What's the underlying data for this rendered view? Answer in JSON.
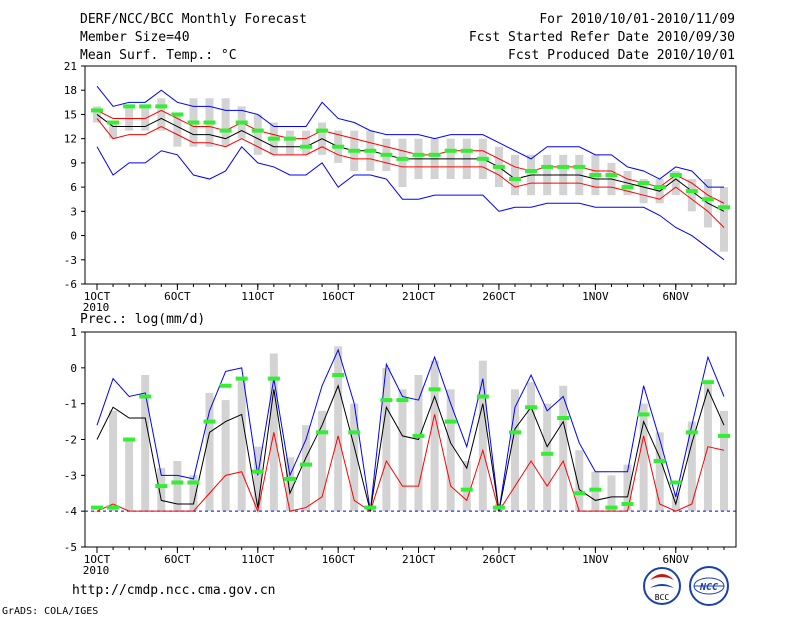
{
  "header": {
    "title": "DERF/NCC/BCC Monthly Forecast",
    "member_size": "Member Size=40",
    "variable": "Mean Surf. Temp.: °C",
    "period": "For 2010/10/01-2010/11/09",
    "fcst_started": "Fcst Started Refer Date 2010/09/30",
    "fcst_produced": "Fcst Produced Date 2010/10/01"
  },
  "footer": {
    "url": "http://cmdp.ncc.cma.gov.cn",
    "grads": "GrADS: COLA/IGES",
    "logo_bcc": "BCC",
    "logo_ncc": "NCC"
  },
  "colors": {
    "max_line": "#0000ff",
    "min_line": "#0000ff",
    "mean_line": "#000000",
    "spread_line": "#ff0000",
    "box": "#d3d3d3",
    "marker": "#33ee33"
  },
  "chart_data": [
    {
      "type": "line",
      "title": "Mean Surf. Temp.: °C",
      "xlabel": "",
      "ylabel": "",
      "ylim": [
        -6,
        21
      ],
      "yticks": [
        "-6",
        "-3",
        "0",
        "3",
        "6",
        "9",
        "12",
        "15",
        "18",
        "21"
      ],
      "xticks": [
        {
          "day": 1,
          "label": "1OCT",
          "sub": "2010"
        },
        {
          "day": 6,
          "label": "6OCT"
        },
        {
          "day": 11,
          "label": "11OCT"
        },
        {
          "day": 16,
          "label": "16OCT"
        },
        {
          "day": 21,
          "label": "21OCT"
        },
        {
          "day": 26,
          "label": "26OCT"
        },
        {
          "day": 32,
          "label": "1NOV"
        },
        {
          "day": 37,
          "label": "6NOV"
        }
      ],
      "x": [
        1,
        2,
        3,
        4,
        5,
        6,
        7,
        8,
        9,
        10,
        11,
        12,
        13,
        14,
        15,
        16,
        17,
        18,
        19,
        20,
        21,
        22,
        23,
        24,
        25,
        26,
        27,
        28,
        29,
        30,
        31,
        32,
        33,
        34,
        35,
        36,
        37,
        38,
        39,
        40
      ],
      "series": [
        {
          "name": "max",
          "values": [
            18.5,
            16,
            16.5,
            16.5,
            18,
            16.5,
            16,
            16,
            15.5,
            15.5,
            15,
            13.5,
            13.5,
            13.5,
            16.5,
            14.5,
            14,
            13,
            12.5,
            12.5,
            12.5,
            12,
            12.5,
            12.5,
            12.5,
            11.5,
            10.5,
            9.5,
            11,
            11,
            11,
            10,
            10,
            8.5,
            8,
            7,
            8.5,
            8,
            6,
            6
          ]
        },
        {
          "name": "mean_plus",
          "values": [
            15.5,
            14.5,
            14.5,
            14.5,
            15.5,
            14.5,
            13.5,
            13.5,
            13,
            14,
            13,
            12.5,
            12,
            12,
            13,
            12.5,
            12,
            11.5,
            11,
            10.5,
            10,
            10,
            10.5,
            10.5,
            10.5,
            9.5,
            8.5,
            8,
            8.5,
            8.5,
            8.5,
            8,
            8,
            7,
            6.5,
            6,
            7.5,
            6.5,
            5,
            4
          ]
        },
        {
          "name": "mean",
          "values": [
            15,
            13.5,
            13.5,
            13.5,
            14.5,
            13.5,
            12.5,
            12.5,
            12,
            13,
            12,
            11,
            11,
            11,
            12,
            11,
            10.5,
            10.5,
            10,
            9.5,
            9.5,
            9.5,
            9.5,
            9.5,
            9.5,
            8.5,
            7,
            7.5,
            7.5,
            7.5,
            7.5,
            7,
            7,
            6.5,
            6,
            5.5,
            7,
            5.5,
            4,
            3
          ]
        },
        {
          "name": "mean_minus",
          "values": [
            14.5,
            12,
            12.5,
            12.5,
            13.5,
            12.5,
            11.5,
            11.5,
            11,
            12,
            11,
            10,
            10,
            10,
            11,
            10,
            9.5,
            9.5,
            9,
            8.5,
            8.5,
            8.5,
            8.5,
            8.5,
            8.5,
            7.5,
            6,
            6.5,
            6.5,
            6.5,
            6.5,
            6,
            6,
            5.5,
            5,
            4.5,
            6,
            4.5,
            3,
            1
          ]
        },
        {
          "name": "min",
          "values": [
            11,
            7.5,
            9,
            9,
            10.5,
            10,
            7.5,
            7,
            8,
            11,
            9,
            8.5,
            7.5,
            7.5,
            9,
            6,
            7.5,
            7.5,
            7,
            4.5,
            4.5,
            5,
            5,
            5,
            5,
            3,
            3.5,
            3.5,
            4,
            4,
            4,
            3.5,
            3.5,
            3.5,
            3.5,
            2.5,
            1,
            0,
            -1.5,
            -3
          ]
        },
        {
          "name": "box_top",
          "values": [
            16,
            14,
            16,
            16,
            17,
            15,
            17,
            17,
            17,
            16,
            15,
            14,
            13,
            13,
            14,
            13,
            13,
            13,
            12,
            12,
            12,
            12,
            12,
            12,
            12,
            11,
            10,
            10,
            10,
            10,
            10,
            10,
            9,
            8,
            7,
            7,
            8,
            7,
            7,
            6
          ]
        },
        {
          "name": "box_bottom",
          "values": [
            14,
            12,
            13,
            13,
            13,
            11,
            11,
            11,
            11,
            12,
            10,
            10,
            10,
            10,
            10,
            9,
            8,
            8,
            8,
            6,
            7,
            7,
            7,
            7,
            7,
            6,
            5,
            5,
            5,
            5,
            5,
            5,
            5,
            5,
            4,
            4,
            5,
            3,
            1,
            -2
          ]
        },
        {
          "name": "marker",
          "values": [
            15.5,
            14,
            16,
            16,
            16,
            15,
            14,
            14,
            13,
            14,
            13,
            12,
            12,
            11,
            13,
            11,
            10.5,
            10.5,
            10,
            9.5,
            10,
            10,
            10.5,
            10.5,
            9.5,
            8.5,
            7,
            8,
            8.5,
            8.5,
            8.5,
            7.5,
            7.5,
            6,
            6.5,
            6,
            7.5,
            5.5,
            4.5,
            3.5
          ]
        }
      ]
    },
    {
      "type": "line",
      "title": "Prec.: log(mm/d)",
      "xlabel": "",
      "ylabel": "",
      "ylim": [
        -5,
        1
      ],
      "yticks": [
        "-5",
        "-4",
        "-3",
        "-2",
        "-1",
        "0",
        "1"
      ],
      "xticks": [
        {
          "day": 1,
          "label": "1OCT",
          "sub": "2010"
        },
        {
          "day": 6,
          "label": "6OCT"
        },
        {
          "day": 11,
          "label": "11OCT"
        },
        {
          "day": 16,
          "label": "16OCT"
        },
        {
          "day": 21,
          "label": "21OCT"
        },
        {
          "day": 26,
          "label": "26OCT"
        },
        {
          "day": 32,
          "label": "1NOV"
        },
        {
          "day": 37,
          "label": "6NOV"
        }
      ],
      "x": [
        1,
        2,
        3,
        4,
        5,
        6,
        7,
        8,
        9,
        10,
        11,
        12,
        13,
        14,
        15,
        16,
        17,
        18,
        19,
        20,
        21,
        22,
        23,
        24,
        25,
        26,
        27,
        28,
        29,
        30,
        31,
        32,
        33,
        34,
        35,
        36,
        37,
        38,
        39,
        40
      ],
      "series": [
        {
          "name": "max",
          "values": [
            -1.6,
            -0.3,
            -0.8,
            -0.7,
            -3,
            -3,
            -3.1,
            -1.2,
            -0.1,
            0,
            -3,
            -0.3,
            -3,
            -2,
            -0.5,
            0.5,
            -1,
            -4,
            0.1,
            -0.8,
            -0.9,
            0.3,
            -1,
            -2.2,
            -0.3,
            -4,
            -1.1,
            -0.2,
            -1.2,
            -0.8,
            -2.1,
            -2.9,
            -2.9,
            -2.9,
            -0.5,
            -2,
            -3.6,
            -1.6,
            0.3,
            -0.8
          ]
        },
        {
          "name": "mean",
          "values": [
            -2,
            -1.1,
            -1.4,
            -1.4,
            -3.7,
            -3.8,
            -3.8,
            -1.8,
            -1.5,
            -1.3,
            -3.9,
            -0.6,
            -3.5,
            -2.5,
            -1.6,
            -0.5,
            -2.2,
            -4,
            -1.1,
            -1.9,
            -2,
            -0.8,
            -2.1,
            -2.8,
            -1,
            -4,
            -1.7,
            -1.1,
            -2.2,
            -1.5,
            -3.4,
            -3.7,
            -3.6,
            -3.6,
            -1.5,
            -2.5,
            -3.8,
            -2.1,
            -0.6,
            -1.6
          ]
        },
        {
          "name": "min_line",
          "values": [
            -4,
            -3.8,
            -4,
            -4,
            -4,
            -4,
            -4,
            -3.5,
            -3,
            -2.9,
            -4,
            -1.8,
            -4,
            -3.9,
            -3.6,
            -1.9,
            -3.7,
            -4,
            -2.6,
            -3.3,
            -3.3,
            -1.3,
            -3.3,
            -3.7,
            -2.3,
            -4,
            -3.3,
            -2.6,
            -3.3,
            -2.6,
            -4,
            -4,
            -4,
            -4,
            -1.9,
            -3.8,
            -4,
            -3.8,
            -2.2,
            -2.3
          ]
        },
        {
          "name": "box_top",
          "values": [
            -4,
            -1.2,
            -2,
            -0.2,
            -2.8,
            -2.6,
            -3,
            -0.7,
            -0.9,
            -0.3,
            -2.2,
            0.4,
            -2.5,
            -1.6,
            -1.2,
            0.6,
            -1,
            -3.9,
            0,
            -0.6,
            -0.2,
            0.2,
            -0.6,
            -2.6,
            0.2,
            -3.8,
            -0.6,
            -0.4,
            -1,
            -0.5,
            -2.3,
            -2.9,
            -3,
            -2.7,
            -1,
            -1.8,
            -3.5,
            -1.5,
            -0.4,
            -1.2
          ]
        },
        {
          "name": "box_bottom",
          "values": [
            -4,
            -4,
            -4,
            -4,
            -4,
            -4,
            -4,
            -4,
            -4,
            -4,
            -4,
            -4,
            -4,
            -4,
            -4,
            -4,
            -4,
            -4,
            -4,
            -4,
            -4,
            -4,
            -4,
            -4,
            -4,
            -4,
            -4,
            -4,
            -4,
            -4,
            -4,
            -4,
            -4,
            -4,
            -4,
            -4,
            -4,
            -4,
            -4,
            -4
          ]
        },
        {
          "name": "marker",
          "values": [
            -3.9,
            -3.9,
            -2,
            -0.8,
            -3.3,
            -3.2,
            -3.2,
            -1.5,
            -0.5,
            -0.3,
            -2.9,
            -0.3,
            -3.1,
            -2.7,
            -1.8,
            -0.2,
            -1.8,
            -3.9,
            -0.9,
            -0.9,
            -1.9,
            -0.6,
            -1.5,
            -3.4,
            -0.8,
            -3.9,
            -1.8,
            -1.1,
            -2.4,
            -1.4,
            -3.5,
            -3.4,
            -3.9,
            -3.8,
            -1.3,
            -2.6,
            -3.2,
            -1.8,
            -0.4,
            -1.9
          ]
        }
      ]
    }
  ]
}
